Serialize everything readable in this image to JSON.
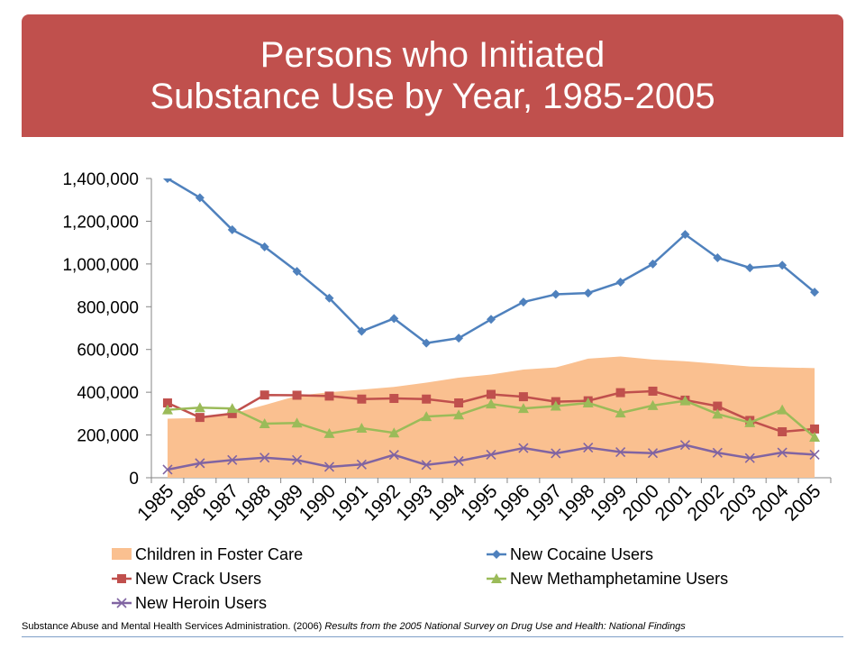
{
  "slide": {
    "title_line1": "Persons who Initiated",
    "title_line2": "Substance Use by Year, 1985-2005",
    "source_text": "Substance Abuse and Mental Health Services Administration. (2006)",
    "source_title": "Results from the 2005 National Survey on Drug Use and Health: National Findings",
    "banner_color": "#c0504d"
  },
  "chart_data": {
    "type": "line",
    "categories": [
      "1985",
      "1986",
      "1987",
      "1988",
      "1989",
      "1990",
      "1991",
      "1992",
      "1993",
      "1994",
      "1995",
      "1996",
      "1997",
      "1998",
      "1999",
      "2000",
      "2001",
      "2002",
      "2003",
      "2004",
      "2005"
    ],
    "ylim": [
      0,
      1400000
    ],
    "yticks": [
      0,
      200000,
      400000,
      600000,
      800000,
      1000000,
      1200000,
      1400000
    ],
    "ytick_labels": [
      "0",
      "200,000",
      "400,000",
      "600,000",
      "800,000",
      "1,000,000",
      "1,200,000",
      "1,400,000"
    ],
    "legend_position": "bottom",
    "series": [
      {
        "name": "Children in Foster Care",
        "kind": "area",
        "color": "#fac090",
        "values": [
          276000,
          280000,
          300000,
          340000,
          383000,
          400000,
          412000,
          425000,
          445000,
          468000,
          483000,
          506000,
          516000,
          557000,
          567000,
          553000,
          545000,
          533000,
          520000,
          516000,
          513000
        ]
      },
      {
        "name": "New Cocaine Users",
        "kind": "line",
        "marker": "diamond",
        "color": "#4f81bd",
        "values": [
          1410000,
          1310000,
          1160000,
          1080000,
          965000,
          840000,
          685000,
          745000,
          630000,
          653000,
          741000,
          822000,
          858000,
          864000,
          915000,
          1000000,
          1138000,
          1029000,
          982000,
          994000,
          868000
        ]
      },
      {
        "name": "New Crack Users",
        "kind": "line",
        "marker": "square",
        "color": "#c0504d",
        "values": [
          350000,
          282000,
          300000,
          387000,
          386000,
          382000,
          368000,
          371000,
          368000,
          350000,
          390000,
          379000,
          356000,
          360000,
          398000,
          405000,
          363000,
          335000,
          268000,
          215000,
          228000
        ]
      },
      {
        "name": "New Methamphetamine Users",
        "kind": "line",
        "marker": "triangle",
        "color": "#9bbb59",
        "values": [
          318000,
          328000,
          324000,
          253000,
          256000,
          207000,
          232000,
          210000,
          286000,
          294000,
          345000,
          324000,
          335000,
          350000,
          303000,
          338000,
          360000,
          298000,
          258000,
          318000,
          190000
        ]
      },
      {
        "name": "New Heroin Users",
        "kind": "line",
        "marker": "x",
        "color": "#8064a2",
        "values": [
          38000,
          68000,
          83000,
          94000,
          83000,
          51000,
          62000,
          107000,
          60000,
          78000,
          108000,
          139000,
          114000,
          141000,
          120000,
          115000,
          153000,
          117000,
          92000,
          118000,
          108000
        ]
      }
    ]
  }
}
